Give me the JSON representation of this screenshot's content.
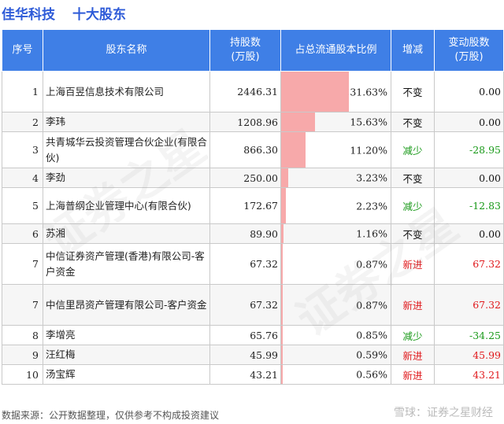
{
  "header": {
    "company": "佳华科技",
    "subtitle": "十大股东"
  },
  "columns": [
    "序号",
    "股东名称",
    "持股数\n(万股)",
    "占总流通股本比例",
    "增减",
    "变动股数\n(万股)"
  ],
  "rows": [
    {
      "seq": "1",
      "name": "上海百昱信息技术有限公司",
      "shares": "2446.31",
      "ratio": "31.63%",
      "ratio_value": 31.63,
      "change": "不变",
      "change_color": "#111111",
      "delta": "0.00",
      "delta_color": "#111111"
    },
    {
      "seq": "2",
      "name": "李玮",
      "shares": "1208.96",
      "ratio": "15.63%",
      "ratio_value": 15.63,
      "change": "不变",
      "change_color": "#111111",
      "delta": "0.00",
      "delta_color": "#111111"
    },
    {
      "seq": "3",
      "name": "共青城华云投资管理合伙企业(有限合伙)",
      "shares": "866.30",
      "ratio": "11.20%",
      "ratio_value": 11.2,
      "change": "减少",
      "change_color": "#1a9a1a",
      "delta": "-28.95",
      "delta_color": "#1a9a1a"
    },
    {
      "seq": "4",
      "name": "李劲",
      "shares": "250.00",
      "ratio": "3.23%",
      "ratio_value": 3.23,
      "change": "不变",
      "change_color": "#111111",
      "delta": "0.00",
      "delta_color": "#111111"
    },
    {
      "seq": "5",
      "name": "上海普纲企业管理中心(有限合伙)",
      "shares": "172.67",
      "ratio": "2.23%",
      "ratio_value": 2.23,
      "change": "减少",
      "change_color": "#1a9a1a",
      "delta": "-12.83",
      "delta_color": "#1a9a1a"
    },
    {
      "seq": "6",
      "name": "苏湘",
      "shares": "89.90",
      "ratio": "1.16%",
      "ratio_value": 1.16,
      "change": "不变",
      "change_color": "#111111",
      "delta": "0.00",
      "delta_color": "#111111"
    },
    {
      "seq": "7",
      "name": "中信证券资产管理(香港)有限公司-客户资金",
      "shares": "67.32",
      "ratio": "0.87%",
      "ratio_value": 0.87,
      "change": "新进",
      "change_color": "#e0191c",
      "delta": "67.32",
      "delta_color": "#e0191c"
    },
    {
      "seq": "7",
      "name": "中信里昂资产管理有限公司-客户资金",
      "shares": "67.32",
      "ratio": "0.87%",
      "ratio_value": 0.87,
      "change": "新进",
      "change_color": "#e0191c",
      "delta": "67.32",
      "delta_color": "#e0191c"
    },
    {
      "seq": "8",
      "name": "李增亮",
      "shares": "65.76",
      "ratio": "0.85%",
      "ratio_value": 0.85,
      "change": "减少",
      "change_color": "#1a9a1a",
      "delta": "-34.25",
      "delta_color": "#1a9a1a"
    },
    {
      "seq": "9",
      "name": "汪红梅",
      "shares": "45.99",
      "ratio": "0.59%",
      "ratio_value": 0.59,
      "change": "新进",
      "change_color": "#e0191c",
      "delta": "45.99",
      "delta_color": "#e0191c"
    },
    {
      "seq": "10",
      "name": "汤宝辉",
      "shares": "43.21",
      "ratio": "0.56%",
      "ratio_value": 0.56,
      "change": "新进",
      "change_color": "#e0191c",
      "delta": "43.21",
      "delta_color": "#e0191c"
    }
  ],
  "ratio_max": 31.63,
  "footer": {
    "source": "数据来源：公开数据整理，仅供参考不构成投资建议",
    "watermark": "雪球：证券之星财经"
  },
  "background_watermark": "证券之星"
}
